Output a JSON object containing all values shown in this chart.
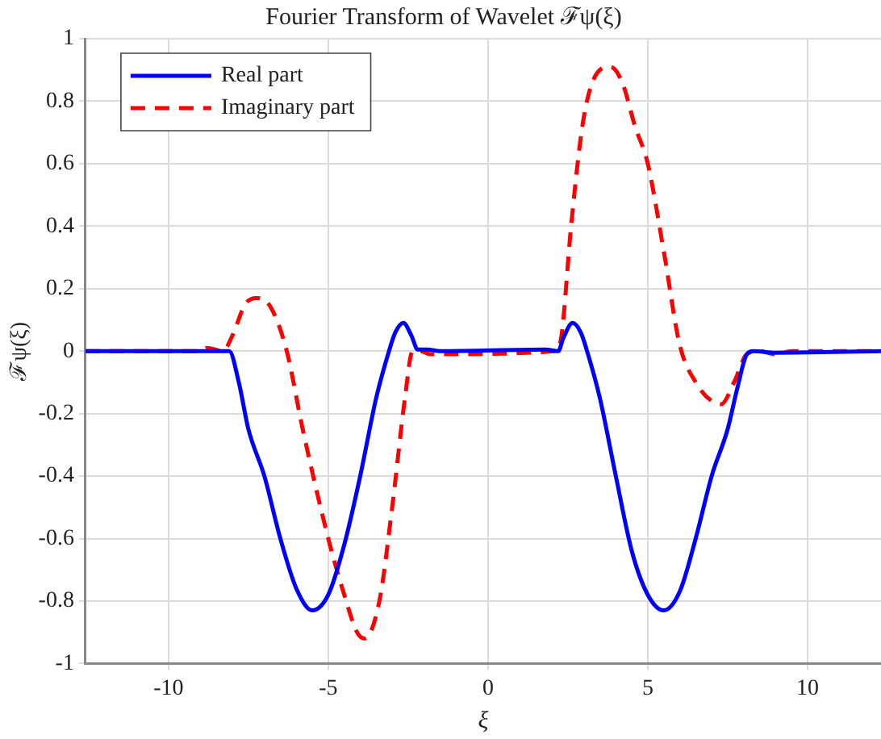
{
  "chart_data": {
    "type": "line",
    "title": "Fourier Transform of Wavelet ℱψ(ξ)",
    "xlabel": "ξ",
    "ylabel": "ℱψ(ξ)",
    "xlim": [
      -12.6,
      12.3
    ],
    "ylim": [
      -1,
      1
    ],
    "xticks": [
      -10,
      -5,
      0,
      5,
      10
    ],
    "yticks": [
      -1,
      -0.8,
      -0.6,
      -0.4,
      -0.2,
      0,
      0.2,
      0.4,
      0.6,
      0.8,
      1
    ],
    "grid": true,
    "legend": "top left",
    "marker": "none",
    "series": [
      {
        "name": "Real part",
        "color": "#0000ff",
        "line_style": "solid",
        "x": [
          -12.6,
          -9,
          -8.1,
          -7.8,
          -7.5,
          -7,
          -6.5,
          -6,
          -5.5,
          -5,
          -4.5,
          -4,
          -3.5,
          -3.1,
          -2.9,
          -2.65,
          -2.4,
          -2.2,
          -1.9,
          -1.5,
          1.8,
          2.2,
          2.35,
          2.65,
          2.9,
          3.1,
          3.5,
          4,
          4.5,
          5,
          5.5,
          6,
          6.5,
          7,
          7.5,
          7.8,
          8.1,
          8.3,
          9,
          12.3
        ],
        "values": [
          0,
          0,
          0,
          -0.1,
          -0.25,
          -0.4,
          -0.6,
          -0.76,
          -0.83,
          -0.78,
          -0.62,
          -0.4,
          -0.15,
          0,
          0.06,
          0.09,
          0.05,
          0.005,
          0.005,
          0,
          0.005,
          0,
          0.04,
          0.09,
          0.06,
          0,
          -0.15,
          -0.4,
          -0.64,
          -0.78,
          -0.83,
          -0.77,
          -0.6,
          -0.4,
          -0.25,
          -0.12,
          -0.01,
          0,
          -0.005,
          0
        ]
      },
      {
        "name": "Imaginary part",
        "color": "#ff0000",
        "line_style": "dashed",
        "x": [
          -12.6,
          -9,
          -8.8,
          -8.3,
          -8,
          -7.6,
          -7.25,
          -6.8,
          -6.3,
          -5.8,
          -5,
          -4.5,
          -4.1,
          -3.87,
          -3.4,
          -3,
          -2.6,
          -2.36,
          -2.1,
          -1.8,
          2.1,
          2.3,
          2.6,
          3,
          3.5,
          3.83,
          4.2,
          4.6,
          5,
          5.5,
          6,
          6.5,
          7,
          7.3,
          7.7,
          8.1,
          8.5,
          9,
          9.5,
          12.3
        ],
        "values": [
          0,
          0,
          0.01,
          0,
          0.05,
          0.15,
          0.17,
          0.14,
          0,
          -0.25,
          -0.6,
          -0.78,
          -0.9,
          -0.92,
          -0.8,
          -0.5,
          -0.15,
          0,
          0,
          -0.01,
          0,
          0.05,
          0.4,
          0.75,
          0.9,
          0.91,
          0.86,
          0.72,
          0.6,
          0.32,
          0.02,
          -0.1,
          -0.16,
          -0.17,
          -0.1,
          -0.01,
          0,
          -0.01,
          0,
          0
        ]
      }
    ]
  }
}
